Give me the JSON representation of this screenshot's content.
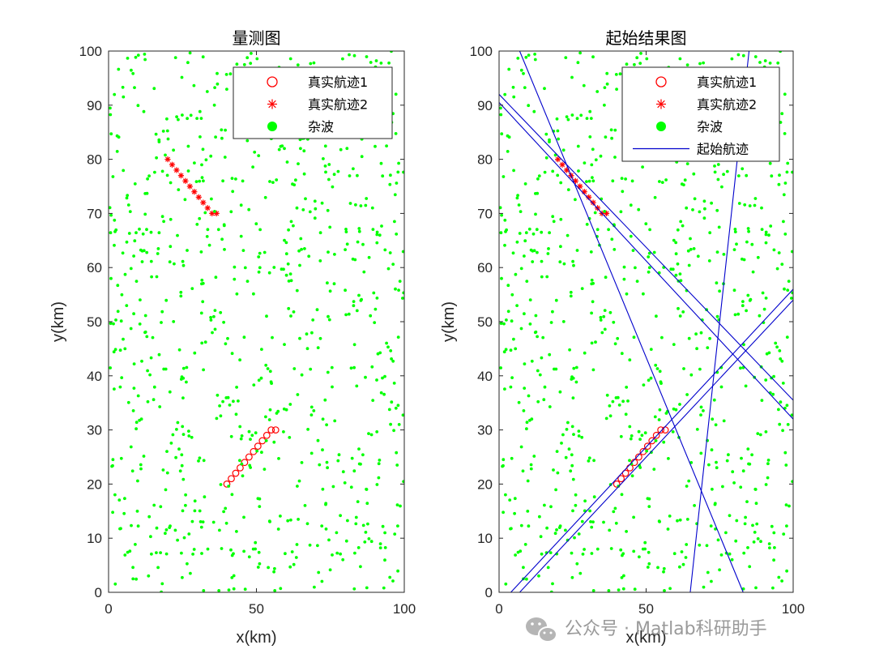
{
  "colors": {
    "track1": "#ff0000",
    "track2": "#ff0000",
    "clutter": "#00ff00",
    "initiated": "#0000cc",
    "axis": "#262626"
  },
  "watermark": {
    "icon": "wechat-icon",
    "text": "公众号 · Matlab科研助手"
  },
  "chart_data": [
    {
      "type": "scatter",
      "title": "量测图",
      "xlabel": "x(km)",
      "ylabel": "y(km)",
      "xlim": [
        0,
        100
      ],
      "ylim": [
        0,
        100
      ],
      "xticks": [
        0,
        50,
        100
      ],
      "yticks": [
        0,
        10,
        20,
        30,
        40,
        50,
        60,
        70,
        80,
        90,
        100
      ],
      "grid": false,
      "legend_position": "top-right",
      "series": [
        {
          "name": "真实航迹1",
          "marker": "circle-open",
          "x": [
            40,
            41.5,
            43,
            44.5,
            46,
            47.5,
            49,
            50.5,
            52,
            53.5,
            55,
            56.5
          ],
          "y": [
            20,
            21,
            22,
            23,
            24,
            25,
            26,
            27,
            28,
            29,
            30,
            30
          ]
        },
        {
          "name": "真实航迹2",
          "marker": "asterisk",
          "x": [
            20,
            21.5,
            23,
            24.5,
            26,
            27.5,
            29,
            30.5,
            32,
            33.5,
            35,
            36.5
          ],
          "y": [
            80,
            79,
            78,
            77,
            76,
            75,
            74,
            73,
            72,
            71,
            70,
            70
          ]
        },
        {
          "name": "杂波",
          "marker": "dot",
          "count": 800,
          "distribution": "uniform over [0,100]×[0,100]"
        }
      ]
    },
    {
      "type": "scatter",
      "title": "起始结果图",
      "xlabel": "x(km)",
      "ylabel": "y(km)",
      "xlim": [
        0,
        100
      ],
      "ylim": [
        0,
        100
      ],
      "xticks": [
        0,
        50,
        100
      ],
      "yticks": [
        0,
        10,
        20,
        30,
        40,
        50,
        60,
        70,
        80,
        90,
        100
      ],
      "grid": false,
      "legend_position": "top-right",
      "series": [
        {
          "name": "真实航迹1",
          "marker": "circle-open",
          "x": [
            40,
            41.5,
            43,
            44.5,
            46,
            47.5,
            49,
            50.5,
            52,
            53.5,
            55,
            56.5
          ],
          "y": [
            20,
            21,
            22,
            23,
            24,
            25,
            26,
            27,
            28,
            29,
            30,
            30
          ]
        },
        {
          "name": "真实航迹2",
          "marker": "asterisk",
          "x": [
            20,
            21.5,
            23,
            24.5,
            26,
            27.5,
            29,
            30.5,
            32,
            33.5,
            35,
            36.5
          ],
          "y": [
            80,
            79,
            78,
            77,
            76,
            75,
            74,
            73,
            72,
            71,
            70,
            70
          ]
        },
        {
          "name": "杂波",
          "marker": "dot",
          "count": 800,
          "distribution": "uniform over [0,100]×[0,100]"
        },
        {
          "name": "起始航迹",
          "marker": "line",
          "lines": [
            {
              "x": [
                7,
                83
              ],
              "y": [
                100,
                0
              ]
            },
            {
              "x": [
                65,
                85
              ],
              "y": [
                0,
                100
              ]
            },
            {
              "x": [
                0,
                100
              ],
              "y": [
                92,
                35.5
              ]
            },
            {
              "x": [
                0,
                100
              ],
              "y": [
                90.5,
                32
              ]
            },
            {
              "x": [
                4,
                100
              ],
              "y": [
                0,
                56
              ]
            },
            {
              "x": [
                7,
                100
              ],
              "y": [
                0,
                54
              ]
            }
          ]
        }
      ]
    }
  ]
}
